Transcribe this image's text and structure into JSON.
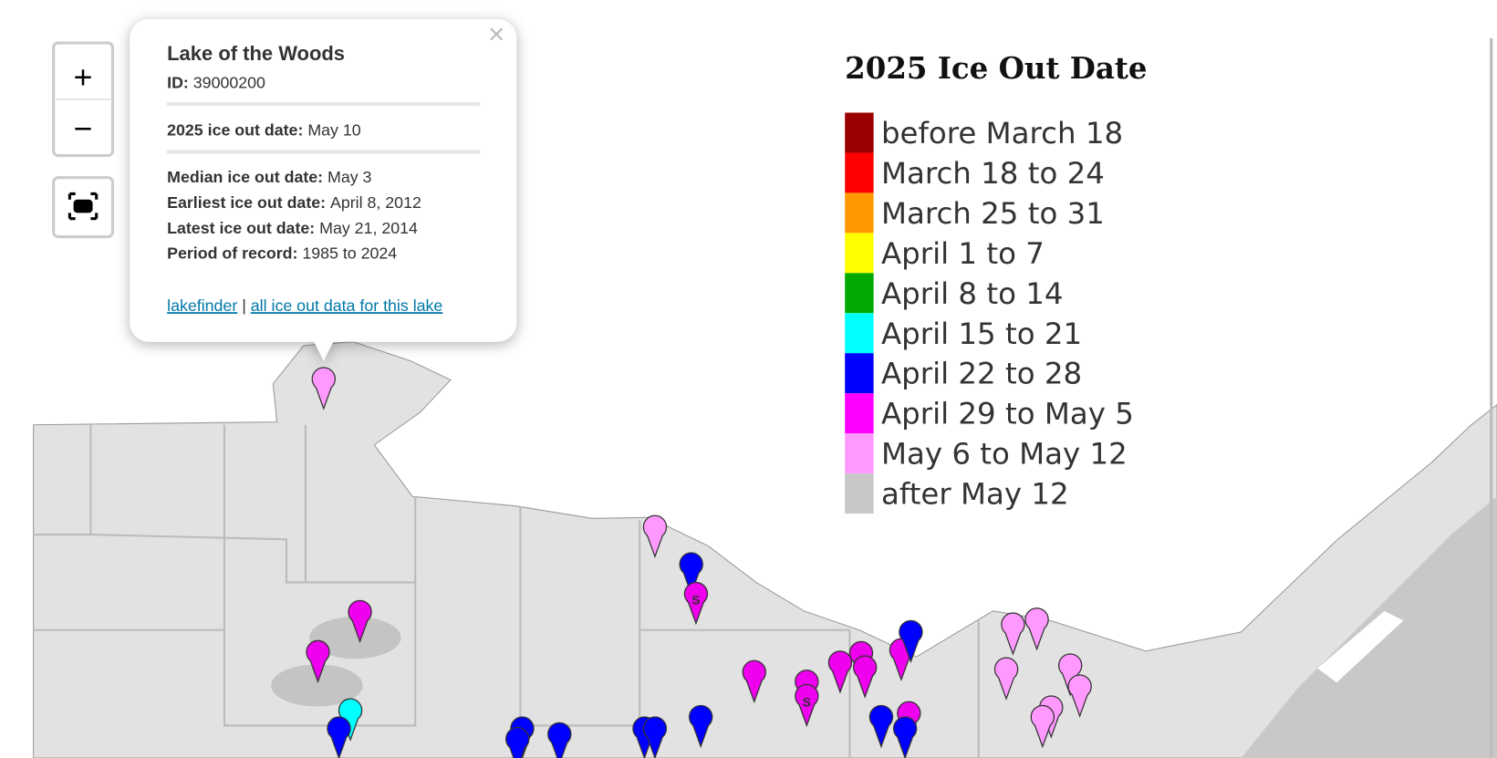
{
  "popup": {
    "close": "×",
    "title": "Lake of the Woods",
    "id_label": "ID:",
    "id": "39000200",
    "ice_out_label": "2025 ice out date:",
    "ice_out": "May 10",
    "stats": [
      {
        "label": "Median ice out date:",
        "value": "May 3"
      },
      {
        "label": "Earliest ice out date:",
        "value": "April 8, 2012"
      },
      {
        "label": "Latest ice out date:",
        "value": "May 21, 2014"
      },
      {
        "label": "Period of record:",
        "value": "1985 to 2024"
      }
    ],
    "links": [
      "lakefinder",
      "all ice out data for this lake"
    ],
    "separator": "|"
  },
  "controls": {
    "zoom_in": "+",
    "zoom_out": "−"
  },
  "map": {
    "pin_label": "S"
  },
  "legend": {
    "title": "2025 Ice Out Date",
    "items": [
      {
        "label": "before March 18",
        "color": "#990000"
      },
      {
        "label": "March 18 to 24",
        "color": "#ff0000"
      },
      {
        "label": "March 25 to 31",
        "color": "#ff9900"
      },
      {
        "label": "April 1 to 7",
        "color": "#ffff00"
      },
      {
        "label": "April 8 to 14",
        "color": "#00aa00"
      },
      {
        "label": "April 15 to 21",
        "color": "#00ffff"
      },
      {
        "label": "April 22 to 28",
        "color": "#0000ff"
      },
      {
        "label": "April 29 to May 5",
        "color": "#ff00ff"
      },
      {
        "label": "May 6 to May 12",
        "color": "#ff99ff"
      },
      {
        "label": "after May 12",
        "color": "#c8c8c8"
      }
    ]
  }
}
